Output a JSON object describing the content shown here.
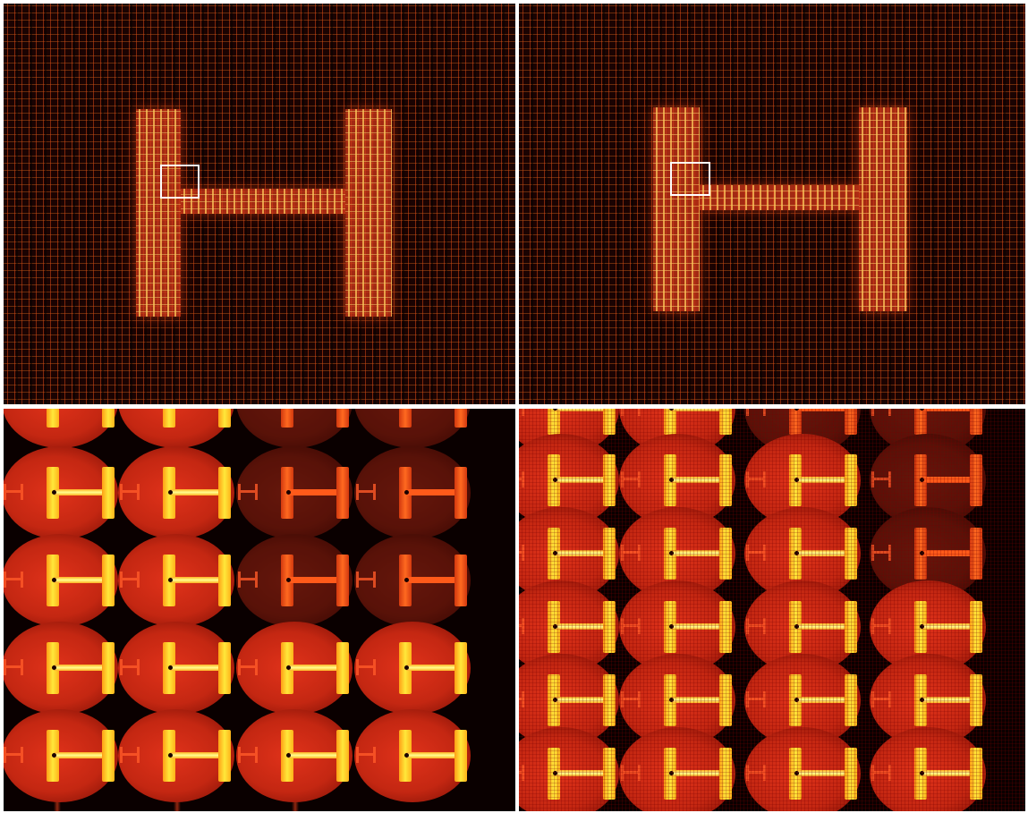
{
  "figure": {
    "panels": [
      {
        "id": "top-left",
        "content": "lenslet-array-image-h-shape"
      },
      {
        "id": "top-right",
        "content": "lenslet-array-image-h-shape"
      },
      {
        "id": "bottom-left",
        "content": "zoomed-elemental-images"
      },
      {
        "id": "bottom-right",
        "content": "zoomed-elemental-images"
      }
    ],
    "colors": {
      "background": "#0a0000",
      "glow": "#d2371a",
      "highlight": "#ffe83a",
      "zoom_box": "#ffffff",
      "separator": "#ffffff"
    }
  }
}
